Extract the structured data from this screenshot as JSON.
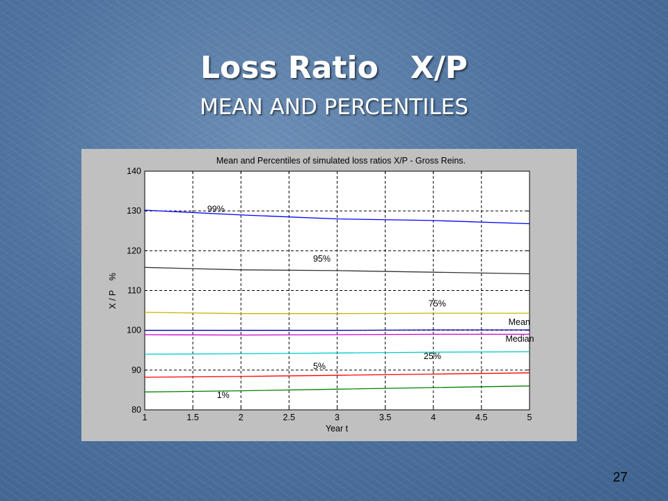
{
  "slide": {
    "title": "Loss Ratio   X/P",
    "subtitle": "MEAN AND PERCENTILES",
    "page_number": "27"
  },
  "chart_data": {
    "type": "line",
    "title": "Mean and Percentiles of simulated loss ratios X/P - Gross Reins.",
    "xlabel": "Year t",
    "ylabel": "X / P    %",
    "xlim": [
      1,
      5
    ],
    "ylim": [
      80,
      140
    ],
    "xticks": [
      "1",
      "1.5",
      "2",
      "2.5",
      "3",
      "3.5",
      "4",
      "4.5",
      "5"
    ],
    "yticks": [
      "80",
      "90",
      "100",
      "110",
      "120",
      "130",
      "140"
    ],
    "grid": true,
    "x": [
      1,
      2,
      3,
      4,
      5
    ],
    "series": [
      {
        "name": "99%",
        "color": "#0000ff",
        "values": [
          130.2,
          129.0,
          128.0,
          127.6,
          126.8
        ],
        "label_at": [
          1.65,
          129.8
        ]
      },
      {
        "name": "95%",
        "color": "#333333",
        "values": [
          115.8,
          115.2,
          115.0,
          114.6,
          114.2
        ],
        "label_at": [
          2.75,
          117.3
        ]
      },
      {
        "name": "75%",
        "color": "#c8b400",
        "values": [
          104.5,
          104.2,
          104.2,
          104.3,
          104.3
        ],
        "label_at": [
          3.95,
          106.0
        ]
      },
      {
        "name": "Mean",
        "color": "#0000aa",
        "values": [
          100.0,
          100.0,
          100.0,
          100.1,
          100.1
        ],
        "label_at": [
          4.78,
          101.3
        ]
      },
      {
        "name": "Median",
        "color": "#cc00cc",
        "values": [
          98.9,
          98.8,
          98.9,
          99.0,
          99.0
        ],
        "label_at": [
          4.75,
          97.1
        ]
      },
      {
        "name": "25%",
        "color": "#00cccc",
        "values": [
          94.0,
          94.1,
          94.3,
          94.5,
          94.6
        ],
        "label_at": [
          3.9,
          92.8
        ]
      },
      {
        "name": "5%",
        "color": "#ff0000",
        "values": [
          88.2,
          88.4,
          88.7,
          89.0,
          89.3
        ],
        "label_at": [
          2.75,
          90.2
        ]
      },
      {
        "name": "1%",
        "color": "#008000",
        "values": [
          84.5,
          84.8,
          85.2,
          85.6,
          86.0
        ],
        "label_at": [
          1.75,
          83.0
        ]
      }
    ]
  }
}
